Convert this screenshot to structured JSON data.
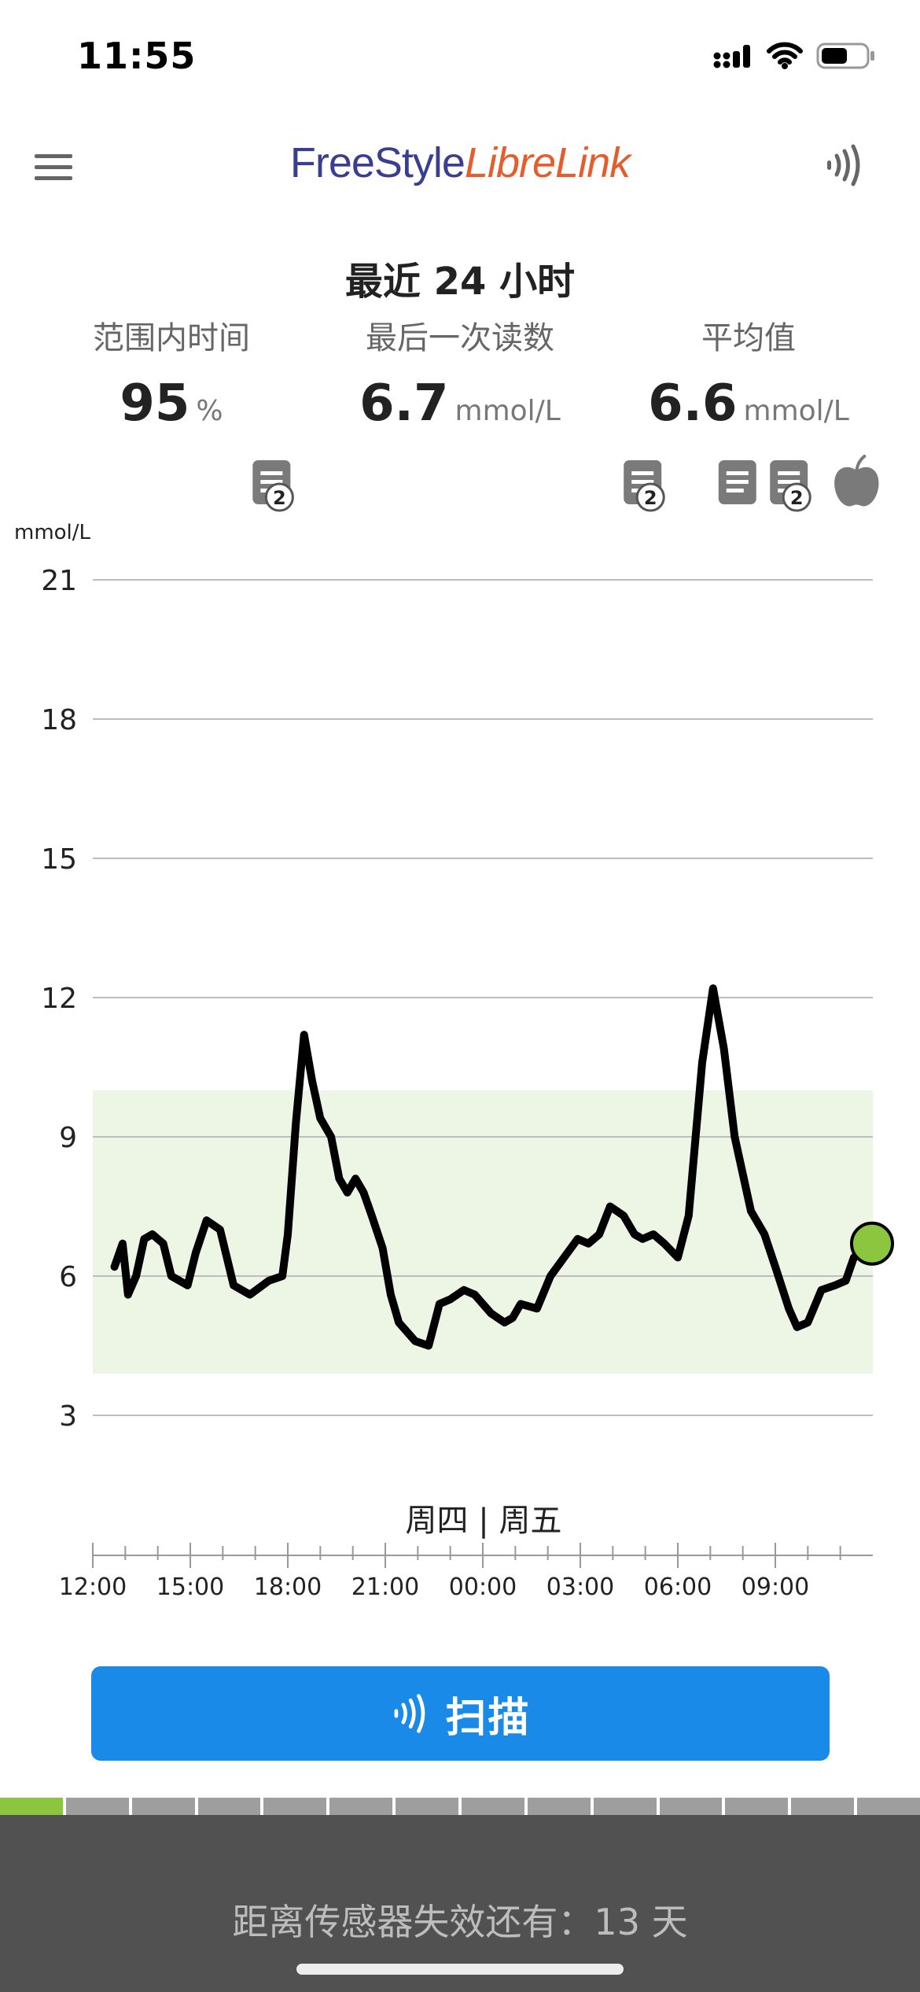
{
  "status_bar": {
    "time": "11:55",
    "icons": [
      "cellular-signal-icon",
      "wifi-icon",
      "battery-icon"
    ],
    "battery_level": 0.6
  },
  "app": {
    "brand_part1": "FreeStyle",
    "brand_part2": "LibreLink",
    "brand_colors": {
      "freestyle": "#3a3e8f",
      "librelink": "#e45d2c"
    },
    "menu_icon": "hamburger-menu-icon",
    "scan_icon": "nfc-scan-icon"
  },
  "summary": {
    "period_title": "最近 24 小时",
    "stats": [
      {
        "label": "范围内时间",
        "value": "95",
        "unit": "%"
      },
      {
        "label": "最后一次读数",
        "value": "6.7",
        "unit": "mmol/L"
      },
      {
        "label": "平均值",
        "value": "6.6",
        "unit": "mmol/L"
      }
    ]
  },
  "notes": {
    "markers": [
      {
        "time": "17:30",
        "icon": "note-icon",
        "count": "2"
      },
      {
        "time": "04:55",
        "icon": "note-icon",
        "count": "2"
      },
      {
        "time": "07:50",
        "icon": "note-icon",
        "count": ""
      },
      {
        "time": "09:25",
        "icon": "note-icon",
        "count": "2"
      },
      {
        "time": "11:30",
        "icon": "food-apple-icon",
        "count": ""
      }
    ]
  },
  "chart_data": {
    "type": "line",
    "ylabel": "mmol/L",
    "ylim": [
      3,
      21
    ],
    "yticks": [
      "21",
      "18",
      "15",
      "12",
      "9",
      "6",
      "3"
    ],
    "xlim": [
      "12:00",
      "11:55"
    ],
    "xticks": [
      "12:00",
      "15:00",
      "18:00",
      "21:00",
      "00:00",
      "03:00",
      "06:00",
      "09:00"
    ],
    "day_label": "周四 | 周五",
    "target_range": [
      3.9,
      10.0
    ],
    "target_color": "#edf6e5",
    "line_color": "#000000",
    "current_point_color": "#8cc63f",
    "grid": true,
    "series": [
      {
        "x": [
          "12:40",
          "12:55",
          "13:05",
          "13:20",
          "13:35",
          "13:50",
          "14:10",
          "14:25",
          "14:55",
          "15:10",
          "15:30",
          "15:55",
          "16:20",
          "16:50",
          "17:25",
          "17:50",
          "18:00",
          "18:15",
          "18:30",
          "18:45",
          "19:00",
          "19:20",
          "19:35",
          "19:50",
          "20:05",
          "20:20",
          "20:35",
          "20:55",
          "21:10",
          "21:25",
          "21:55",
          "22:20",
          "22:40",
          "23:00",
          "23:25",
          "23:45",
          "00:15",
          "00:40",
          "00:55",
          "01:10",
          "01:40",
          "02:05",
          "02:30",
          "02:55",
          "03:15",
          "03:35",
          "03:55",
          "04:20",
          "04:40",
          "04:55",
          "05:15",
          "05:35",
          "06:00",
          "06:20",
          "06:45",
          "07:05",
          "07:25",
          "07:45",
          "08:15",
          "08:40",
          "09:00",
          "09:25",
          "09:40",
          "10:00",
          "10:25",
          "10:50",
          "11:10",
          "11:25",
          "11:35",
          "11:55"
        ],
        "y": [
          6.2,
          6.7,
          5.6,
          6.0,
          6.8,
          6.9,
          6.7,
          6.0,
          5.8,
          6.5,
          7.2,
          7.0,
          5.8,
          5.6,
          5.9,
          6.0,
          6.9,
          9.3,
          11.2,
          10.2,
          9.4,
          9.0,
          8.1,
          7.8,
          8.1,
          7.8,
          7.3,
          6.6,
          5.6,
          5.0,
          4.6,
          4.5,
          5.4,
          5.5,
          5.7,
          5.6,
          5.2,
          5.0,
          5.1,
          5.4,
          5.3,
          6.0,
          6.4,
          6.8,
          6.7,
          6.9,
          7.5,
          7.3,
          6.9,
          6.8,
          6.9,
          6.7,
          6.4,
          7.3,
          10.6,
          12.2,
          10.9,
          9.0,
          7.4,
          6.9,
          6.2,
          5.3,
          4.9,
          5.0,
          5.7,
          5.8,
          5.9,
          6.4,
          6.5,
          6.7
        ]
      }
    ]
  },
  "scan_button": {
    "label": "扫描"
  },
  "sensor": {
    "footer_text": "距离传感器失效还有：13 天",
    "days_total": 14,
    "days_remaining": 13,
    "progress_color": "#8cc63f",
    "remaining_color": "#9e9e9e"
  }
}
